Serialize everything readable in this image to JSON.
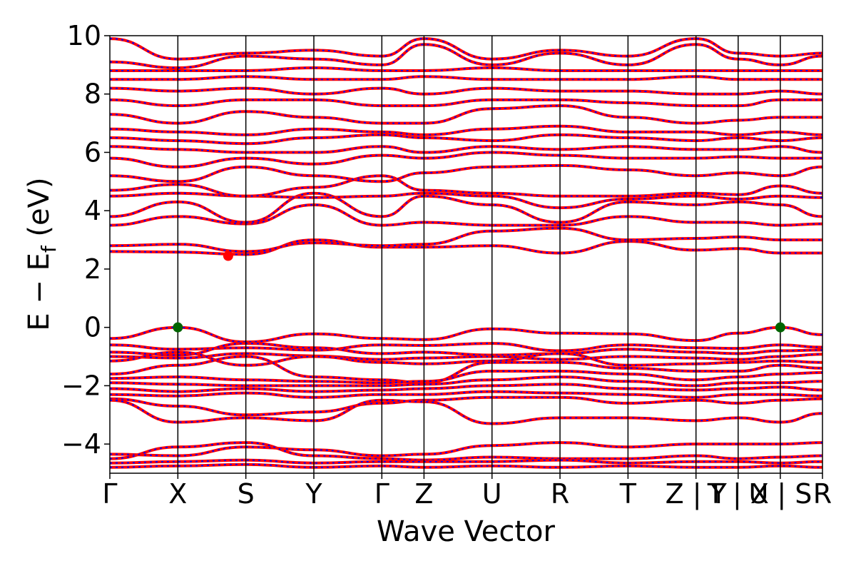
{
  "chart_data": {
    "type": "line",
    "xlabel": "Wave Vector",
    "ylabel": "E − E",
    "ylabel_sub": "f",
    "ylabel_unit": " (eV)",
    "ylim": [
      -5,
      10
    ],
    "yticks": [
      -4,
      -2,
      0,
      2,
      4,
      6,
      8,
      10
    ],
    "ytick_labels": [
      "−4",
      "−2",
      "0",
      "2",
      "4",
      "6",
      "8",
      "10"
    ],
    "kpoints": [
      {
        "label": "Γ",
        "x": 0.0
      },
      {
        "label": "X",
        "x": 0.5
      },
      {
        "label": "S",
        "x": 1.0
      },
      {
        "label": "Y",
        "x": 1.5
      },
      {
        "label": "Γ",
        "x": 2.0
      },
      {
        "label": "Z",
        "x": 2.31
      },
      {
        "label": "U",
        "x": 2.81
      },
      {
        "label": "R",
        "x": 3.31
      },
      {
        "label": "T",
        "x": 3.81
      },
      {
        "label": "Z|Y",
        "x": 4.31
      },
      {
        "label": "T|X",
        "x": 4.62
      },
      {
        "label": "U|S",
        "x": 4.93
      },
      {
        "label": "R",
        "x": 5.24
      }
    ],
    "kpoint_label_text": [
      "Γ",
      "X",
      "S",
      "Y",
      "Γ",
      "Z",
      "U",
      "R",
      "T",
      "Z | Y",
      "T | X",
      "U | S",
      "R"
    ],
    "vbm_points": [
      {
        "x": 0.5,
        "y": 0.0
      },
      {
        "x": 4.93,
        "y": 0.0
      }
    ],
    "cbm_point": {
      "x": 0.87,
      "y": 2.45
    },
    "series": [
      {
        "values_desc": "valence",
        "bands": [
          {
            "y": [
              -0.38,
              0.0,
              -0.5,
              -0.22,
              -0.38,
              -0.42,
              -0.05,
              -0.2,
              -0.22,
              -0.45,
              -0.2,
              0.0,
              -0.25
            ]
          },
          {
            "y": [
              -0.6,
              -0.75,
              -0.7,
              -0.78,
              -0.6,
              -0.62,
              -0.55,
              -0.8,
              -0.6,
              -0.7,
              -0.72,
              -0.6,
              -0.68
            ]
          },
          {
            "y": [
              -0.85,
              -0.95,
              -0.55,
              -0.7,
              -0.9,
              -0.85,
              -0.95,
              -0.9,
              -0.75,
              -0.85,
              -0.9,
              -0.8,
              -0.78
            ]
          },
          {
            "y": [
              -1.0,
              -1.05,
              -0.9,
              -0.98,
              -1.1,
              -1.05,
              -1.0,
              -1.1,
              -1.0,
              -1.05,
              -1.1,
              -1.0,
              -0.92
            ]
          },
          {
            "y": [
              -1.15,
              -0.85,
              -1.3,
              -1.0,
              -1.2,
              -1.25,
              -1.15,
              -0.9,
              -1.3,
              -1.25,
              -1.2,
              -1.15,
              -1.2
            ]
          },
          {
            "y": [
              -1.6,
              -1.3,
              -1.0,
              -1.7,
              -1.8,
              -1.9,
              -1.2,
              -1.2,
              -1.4,
              -1.5,
              -1.5,
              -1.3,
              -1.4
            ]
          },
          {
            "y": [
              -1.75,
              -1.7,
              -1.8,
              -1.85,
              -1.9,
              -1.85,
              -1.5,
              -1.5,
              -1.6,
              -1.8,
              -1.7,
              -1.6,
              -1.55
            ]
          },
          {
            "y": [
              -1.9,
              -1.95,
              -2.0,
              -2.0,
              -2.0,
              -1.95,
              -1.8,
              -1.7,
              -1.85,
              -2.0,
              -1.9,
              -1.9,
              -1.85
            ]
          },
          {
            "y": [
              -2.1,
              -2.2,
              -2.1,
              -2.2,
              -2.15,
              -2.1,
              -2.0,
              -1.95,
              -2.1,
              -2.15,
              -2.1,
              -2.05,
              -2.15
            ]
          },
          {
            "y": [
              -2.3,
              -2.35,
              -2.25,
              -2.4,
              -2.3,
              -2.3,
              -2.2,
              -2.25,
              -2.3,
              -2.4,
              -2.3,
              -2.3,
              -2.35
            ]
          },
          {
            "y": [
              -2.45,
              -2.7,
              -3.0,
              -2.9,
              -2.6,
              -2.5,
              -2.4,
              -2.4,
              -2.6,
              -2.5,
              -2.6,
              -2.5,
              -2.45
            ]
          },
          {
            "y": [
              -2.5,
              -3.25,
              -3.1,
              -3.2,
              -2.5,
              -2.55,
              -3.3,
              -3.1,
              -3.1,
              -3.2,
              -3.1,
              -3.25,
              -2.95
            ]
          },
          {
            "y": [
              -4.35,
              -4.4,
              -4.1,
              -4.2,
              -4.4,
              -4.35,
              -4.05,
              -3.95,
              -4.1,
              -4.0,
              -4.0,
              -4.0,
              -3.95
            ]
          },
          {
            "y": [
              -4.5,
              -4.1,
              -3.95,
              -4.4,
              -4.5,
              -4.55,
              -4.45,
              -4.5,
              -4.5,
              -4.4,
              -4.5,
              -4.45,
              -4.4
            ]
          },
          {
            "y": [
              -4.65,
              -4.6,
              -4.55,
              -4.65,
              -4.6,
              -4.6,
              -4.6,
              -4.55,
              -4.65,
              -4.6,
              -4.6,
              -4.65,
              -4.6
            ]
          },
          {
            "y": [
              -4.8,
              -4.75,
              -4.7,
              -4.8,
              -4.75,
              -4.8,
              -4.75,
              -4.8,
              -4.75,
              -4.8,
              -4.8,
              -4.75,
              -4.8
            ]
          }
        ]
      },
      {
        "values_desc": "conduction",
        "bands": [
          {
            "y": [
              2.6,
              2.58,
              2.5,
              3.0,
              2.75,
              2.75,
              2.8,
              2.55,
              2.95,
              2.65,
              2.7,
              2.55,
              2.55
            ]
          },
          {
            "y": [
              2.8,
              2.85,
              2.6,
              2.9,
              2.8,
              2.85,
              3.3,
              3.4,
              3.0,
              3.05,
              3.1,
              3.0,
              3.0
            ]
          },
          {
            "y": [
              3.5,
              3.8,
              3.55,
              4.2,
              3.5,
              3.6,
              3.5,
              3.5,
              3.8,
              3.6,
              3.6,
              3.5,
              3.55
            ]
          },
          {
            "y": [
              3.8,
              4.3,
              3.6,
              4.6,
              3.8,
              4.5,
              4.2,
              3.6,
              4.3,
              4.2,
              4.3,
              4.2,
              3.8
            ]
          },
          {
            "y": [
              4.5,
              4.6,
              4.5,
              4.45,
              4.5,
              4.6,
              4.5,
              4.1,
              4.4,
              4.5,
              4.4,
              4.5,
              4.45
            ]
          },
          {
            "y": [
              4.7,
              4.9,
              4.5,
              4.8,
              5.2,
              4.7,
              4.6,
              4.5,
              4.5,
              4.6,
              4.55,
              4.85,
              4.6
            ]
          },
          {
            "y": [
              5.2,
              5.0,
              5.5,
              5.2,
              5.0,
              5.3,
              5.5,
              5.55,
              5.4,
              5.2,
              5.3,
              5.2,
              5.5
            ]
          },
          {
            "y": [
              5.8,
              5.5,
              5.8,
              5.6,
              5.9,
              5.8,
              6.0,
              5.9,
              5.8,
              5.8,
              5.85,
              5.8,
              5.8
            ]
          },
          {
            "y": [
              6.2,
              6.1,
              6.0,
              6.0,
              6.2,
              6.0,
              6.2,
              6.1,
              6.2,
              6.1,
              6.1,
              6.2,
              6.0
            ]
          },
          {
            "y": [
              6.5,
              6.4,
              6.3,
              6.5,
              6.6,
              6.5,
              6.4,
              6.6,
              6.5,
              6.4,
              6.5,
              6.4,
              6.5
            ]
          },
          {
            "y": [
              6.8,
              6.7,
              6.6,
              6.8,
              6.7,
              6.6,
              6.8,
              6.9,
              6.7,
              6.7,
              6.6,
              6.7,
              6.6
            ]
          },
          {
            "y": [
              7.3,
              7.0,
              7.4,
              7.2,
              7.0,
              7.0,
              7.5,
              7.6,
              7.2,
              7.0,
              7.1,
              7.2,
              7.2
            ]
          },
          {
            "y": [
              7.8,
              7.6,
              7.8,
              7.8,
              7.6,
              7.6,
              7.8,
              7.8,
              7.7,
              7.6,
              7.6,
              7.8,
              7.8
            ]
          },
          {
            "y": [
              8.2,
              8.1,
              8.2,
              8.0,
              8.2,
              8.0,
              8.2,
              8.1,
              8.1,
              8.0,
              8.0,
              8.1,
              8.0
            ]
          },
          {
            "y": [
              8.5,
              8.5,
              8.6,
              8.5,
              8.5,
              8.6,
              8.5,
              8.5,
              8.5,
              8.6,
              8.5,
              8.5,
              8.5
            ]
          },
          {
            "y": [
              8.8,
              8.8,
              8.8,
              8.9,
              8.8,
              8.8,
              8.9,
              8.8,
              8.8,
              8.8,
              8.8,
              8.8,
              8.8
            ]
          },
          {
            "y": [
              9.1,
              8.9,
              9.3,
              9.2,
              9.0,
              9.7,
              9.0,
              9.4,
              9.0,
              9.7,
              9.2,
              9.0,
              9.3
            ]
          },
          {
            "y": [
              9.9,
              9.2,
              9.4,
              9.5,
              9.3,
              9.9,
              9.2,
              9.5,
              9.3,
              9.9,
              9.4,
              9.3,
              9.4
            ]
          }
        ]
      }
    ],
    "colors": {
      "band": "#ff0000",
      "band_overlay": "#0000ff",
      "vbm": "#006400",
      "cbm": "#ff0000",
      "divider": "#000000"
    },
    "grid": false
  }
}
